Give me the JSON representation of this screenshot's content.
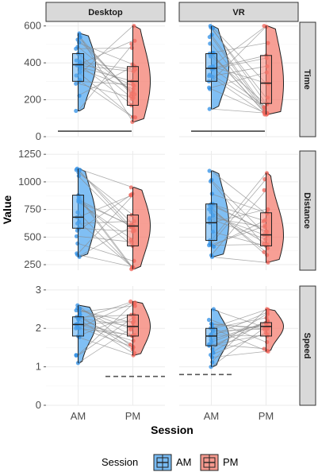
{
  "chart_data": {
    "type": "violin-box-dot",
    "xlabel": "Session",
    "ylabel": "Value",
    "categories": [
      "AM",
      "PM"
    ],
    "columns": [
      "Desktop",
      "VR"
    ],
    "rows": [
      "Time",
      "Distance",
      "Speed"
    ],
    "legend": {
      "title": "Session",
      "position": "bottom",
      "entries": [
        "AM",
        "PM"
      ]
    },
    "colors": {
      "AM": "#2f8fe6",
      "PM": "#f0645a",
      "AM_fill": "#56aaf0",
      "PM_fill": "#f47f72"
    },
    "grid": true,
    "panels": [
      {
        "row": "Time",
        "col": "Desktop",
        "ylim": [
          0,
          620
        ],
        "yticks": [
          0,
          200,
          400,
          600
        ],
        "AM": {
          "min": 140,
          "q1": 300,
          "median": 390,
          "q3": 450,
          "max": 560
        },
        "PM": {
          "min": 80,
          "q1": 170,
          "median": 300,
          "q3": 380,
          "max": 600
        },
        "solid_line": {
          "y": 30
        }
      },
      {
        "row": "Time",
        "col": "VR",
        "ylim": [
          0,
          620
        ],
        "yticks": [
          0,
          200,
          400,
          600
        ],
        "AM": {
          "min": 150,
          "q1": 300,
          "median": 370,
          "q3": 450,
          "max": 600
        },
        "PM": {
          "min": 120,
          "q1": 180,
          "median": 290,
          "q3": 440,
          "max": 600
        },
        "solid_line": {
          "y": 30
        }
      },
      {
        "row": "Distance",
        "col": "Desktop",
        "ylim": [
          200,
          1280
        ],
        "yticks": [
          250,
          500,
          750,
          1000,
          1250
        ],
        "AM": {
          "min": 320,
          "q1": 580,
          "median": 680,
          "q3": 880,
          "max": 1120
        },
        "PM": {
          "min": 210,
          "q1": 420,
          "median": 600,
          "q3": 700,
          "max": 950
        }
      },
      {
        "row": "Distance",
        "col": "VR",
        "ylim": [
          200,
          1280
        ],
        "yticks": [
          250,
          500,
          750,
          1000,
          1250
        ],
        "AM": {
          "min": 320,
          "q1": 470,
          "median": 630,
          "q3": 800,
          "max": 1100
        },
        "PM": {
          "min": 270,
          "q1": 420,
          "median": 520,
          "q3": 720,
          "max": 1080
        }
      },
      {
        "row": "Speed",
        "col": "Desktop",
        "ylim": [
          0,
          3.1
        ],
        "yticks": [
          0,
          1,
          2,
          3
        ],
        "AM": {
          "min": 1.1,
          "q1": 1.8,
          "median": 2.1,
          "q3": 2.3,
          "max": 2.6
        },
        "PM": {
          "min": 1.3,
          "q1": 1.8,
          "median": 2.05,
          "q3": 2.35,
          "max": 2.7
        },
        "dashed_line": {
          "y": 0.75
        }
      },
      {
        "row": "Speed",
        "col": "VR",
        "ylim": [
          0,
          3.1
        ],
        "yticks": [
          0,
          1,
          2,
          3
        ],
        "AM": {
          "min": 1.0,
          "q1": 1.55,
          "median": 1.8,
          "q3": 2.0,
          "max": 2.5
        },
        "PM": {
          "min": 1.4,
          "q1": 1.8,
          "median": 2.05,
          "q3": 2.15,
          "max": 2.5
        },
        "dashed_line": {
          "y": 0.8
        }
      }
    ]
  }
}
